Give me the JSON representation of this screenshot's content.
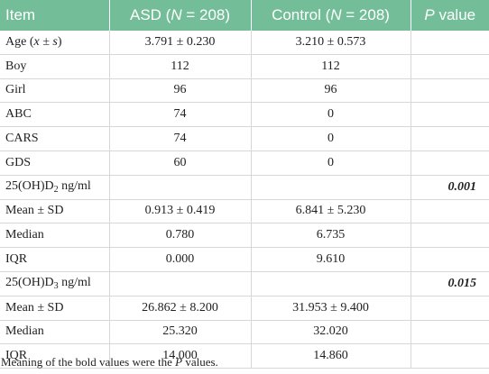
{
  "table": {
    "headers": {
      "item": "Item",
      "asd_prefix": "ASD (",
      "asd_n": "N",
      "asd_suffix": " = 208)",
      "control_prefix": "Control (",
      "control_n": "N",
      "control_suffix": " = 208)",
      "p_letter": "P",
      "p_suffix": " value"
    },
    "rows": [
      {
        "item_pre": "Age (",
        "item_var": "x ± s",
        "item_post": ")",
        "asd": "3.791 ± 0.230",
        "control": "3.210 ± 0.573",
        "p": ""
      },
      {
        "item": "Boy",
        "asd": "112",
        "control": "112",
        "p": ""
      },
      {
        "item": "Girl",
        "asd": "96",
        "control": "96",
        "p": ""
      },
      {
        "item": "ABC",
        "asd": "74",
        "control": "0",
        "p": ""
      },
      {
        "item": "CARS",
        "asd": "74",
        "control": "0",
        "p": ""
      },
      {
        "item": "GDS",
        "asd": "60",
        "control": "0",
        "p": ""
      },
      {
        "item_base": "25(OH)D",
        "item_sub": "2",
        "item_unit": " ng/ml",
        "asd": "",
        "control": "",
        "p": "0.001"
      },
      {
        "item": "Mean ± SD",
        "asd": "0.913 ± 0.419",
        "control": "6.841 ± 5.230",
        "p": ""
      },
      {
        "item": "Median",
        "asd": "0.780",
        "control": "6.735",
        "p": ""
      },
      {
        "item": "IQR",
        "asd": "0.000",
        "control": "9.610",
        "p": ""
      },
      {
        "item_base": "25(OH)D",
        "item_sub": "3",
        "item_unit": " ng/ml",
        "asd": "",
        "control": "",
        "p": "0.015"
      },
      {
        "item": "Mean ± SD",
        "asd": "26.862 ± 8.200",
        "control": "31.953 ± 9.400",
        "p": ""
      },
      {
        "item": "Median",
        "asd": "25.320",
        "control": "32.020",
        "p": ""
      },
      {
        "item": "IQR",
        "asd": "14.000",
        "control": "14.860",
        "p": ""
      }
    ]
  },
  "footnote": {
    "pre": "Meaning of the bold values were the ",
    "var": "P",
    "post": " values."
  },
  "colors": {
    "header_bg": "#74bd99",
    "header_text": "#ffffff",
    "grid": "#d7d7d7"
  }
}
